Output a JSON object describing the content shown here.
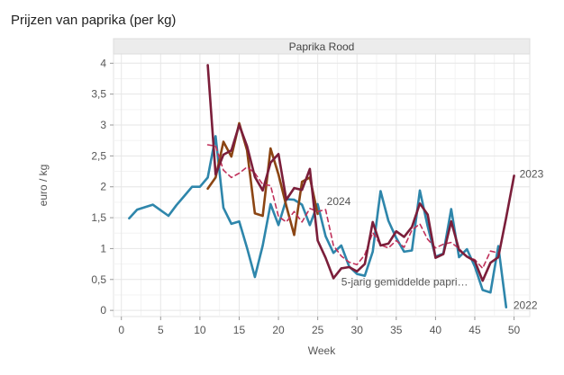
{
  "chart_data": {
    "type": "line",
    "title": "Prijzen van paprika (per kg)",
    "panel": "Paprika Rood",
    "xlabel": "Week",
    "ylabel": "euro / kg",
    "xlim": [
      -1,
      52
    ],
    "ylim": [
      -0.1,
      4.15
    ],
    "xticks": [
      0,
      5,
      10,
      15,
      20,
      25,
      30,
      35,
      40,
      45,
      50
    ],
    "yticks": [
      0,
      0.5,
      1,
      1.5,
      2,
      2.5,
      3,
      3.5,
      4
    ],
    "ytick_labels": [
      "0",
      "0,5",
      "1",
      "1,5",
      "2",
      "2,5",
      "3",
      "3,5",
      "4"
    ],
    "grid": true,
    "legend": "none (series labelled directly at line ends)",
    "series": [
      {
        "name": "2022",
        "color": "#2e86ab",
        "dashed": false,
        "x": [
          1,
          2,
          3,
          4,
          5,
          6,
          7,
          8,
          9,
          10,
          11,
          12,
          13,
          14,
          15,
          16,
          17,
          18,
          19,
          20,
          21,
          22,
          23,
          24,
          25,
          26,
          27,
          28,
          29,
          30,
          31,
          32,
          33,
          34,
          35,
          36,
          37,
          38,
          39,
          40,
          41,
          42,
          43,
          44,
          45,
          46,
          47,
          48,
          49
        ],
        "y": [
          1.49,
          1.63,
          1.67,
          1.71,
          1.62,
          1.53,
          1.7,
          1.85,
          2.0,
          2.0,
          2.15,
          2.82,
          1.66,
          1.4,
          1.44,
          1.01,
          0.54,
          1.05,
          1.72,
          1.38,
          1.8,
          1.79,
          1.71,
          1.38,
          1.72,
          1.2,
          0.93,
          1.05,
          0.71,
          0.59,
          0.56,
          0.95,
          1.93,
          1.45,
          1.17,
          0.95,
          0.97,
          1.94,
          1.36,
          0.87,
          0.92,
          1.64,
          0.86,
          0.99,
          0.71,
          0.33,
          0.29,
          1.04,
          0.05
        ]
      },
      {
        "name": "2023",
        "color": "#7b1e3a",
        "dashed": false,
        "x": [
          11,
          12,
          13,
          14,
          15,
          16,
          17,
          18,
          19,
          20,
          21,
          22,
          23,
          24,
          25,
          26,
          27,
          28,
          29,
          30,
          31,
          32,
          33,
          34,
          35,
          36,
          37,
          38,
          39,
          40,
          41,
          42,
          43,
          44,
          45,
          46,
          47,
          48,
          49,
          50
        ],
        "y": [
          3.97,
          2.2,
          2.52,
          2.59,
          3.0,
          2.66,
          2.16,
          1.94,
          2.39,
          2.53,
          1.79,
          1.98,
          1.95,
          2.29,
          1.13,
          0.85,
          0.52,
          0.68,
          0.7,
          0.63,
          0.75,
          1.43,
          1.05,
          1.08,
          1.28,
          1.19,
          1.35,
          1.73,
          1.55,
          0.85,
          0.91,
          1.44,
          0.98,
          0.87,
          0.8,
          0.48,
          0.77,
          0.86,
          1.5,
          2.18
        ]
      },
      {
        "name": "2024",
        "color": "#8b4513",
        "dashed": false,
        "x": [
          11,
          12,
          13,
          14,
          15,
          16,
          17,
          18,
          19,
          20,
          21,
          22,
          23,
          24,
          25
        ],
        "y": [
          1.97,
          2.15,
          2.73,
          2.49,
          3.03,
          2.59,
          1.57,
          1.53,
          2.62,
          2.2,
          1.69,
          1.22,
          2.08,
          2.15,
          1.56
        ]
      },
      {
        "name": "5-jarig gemiddelde papri…",
        "color": "#c0305a",
        "dashed": true,
        "x": [
          11,
          12,
          13,
          14,
          15,
          16,
          17,
          18,
          19,
          20,
          21,
          22,
          23,
          24,
          25,
          26,
          27,
          28,
          29,
          30,
          31,
          32,
          33,
          34,
          35,
          36,
          37,
          38,
          39,
          40,
          41,
          42,
          43,
          44,
          45,
          46,
          47,
          48
        ],
        "y": [
          2.68,
          2.66,
          2.27,
          2.15,
          2.22,
          2.32,
          2.22,
          2.04,
          2.02,
          1.52,
          1.43,
          1.6,
          1.43,
          1.65,
          1.6,
          1.63,
          1.05,
          0.88,
          0.78,
          0.74,
          0.9,
          1.26,
          1.06,
          1.01,
          1.13,
          1.02,
          1.3,
          1.4,
          1.15,
          1.01,
          1.07,
          1.1,
          1.0,
          0.87,
          0.82,
          0.68,
          0.96,
          0.93
        ]
      }
    ],
    "series_label_positions": [
      "end-below",
      "end-above",
      "end-right",
      "under-line"
    ]
  }
}
